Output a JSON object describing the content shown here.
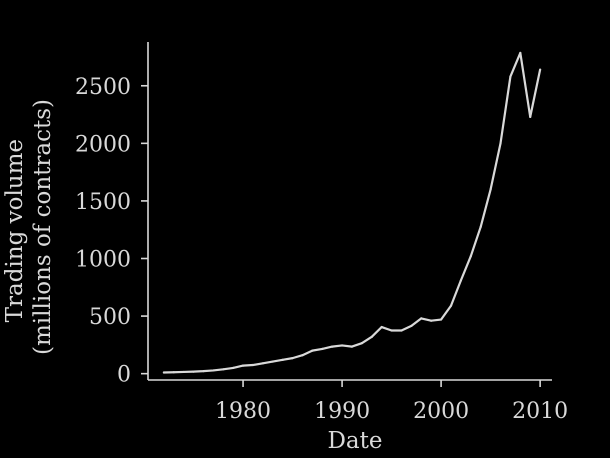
{
  "chart_data": {
    "type": "line",
    "title": "",
    "xlabel": "Date",
    "ylabel_line1": "Trading volume",
    "ylabel_line2": "(millions of contracts)",
    "xlim": [
      1970.4,
      2011.2
    ],
    "ylim": [
      -55,
      2880
    ],
    "xticks": [
      1980,
      1990,
      2000,
      2010
    ],
    "yticks": [
      0,
      500,
      1000,
      1500,
      2000,
      2500
    ],
    "xtick_labels": [
      "1980",
      "1990",
      "2000",
      "2010"
    ],
    "ytick_labels": [
      "0",
      "500",
      "1000",
      "1500",
      "2000",
      "2500"
    ],
    "grid": false,
    "colors": {
      "background": "#000000",
      "axis": "#d9d9d9",
      "line": "#d9d9d9",
      "text": "#d9d9d9"
    },
    "series": [
      {
        "x": [
          1972,
          1973,
          1974,
          1975,
          1976,
          1977,
          1978,
          1979,
          1980,
          1981,
          1982,
          1983,
          1984,
          1985,
          1986,
          1987,
          1988,
          1989,
          1990,
          1991,
          1992,
          1993,
          1994,
          1995,
          1996,
          1997,
          1998,
          1999,
          2000,
          2001,
          2002,
          2003,
          2004,
          2005,
          2006,
          2007,
          2008,
          2009,
          2010
        ],
        "values": [
          10,
          12,
          15,
          18,
          22,
          28,
          38,
          50,
          70,
          75,
          90,
          105,
          120,
          135,
          160,
          200,
          215,
          235,
          245,
          235,
          265,
          320,
          405,
          375,
          375,
          415,
          480,
          460,
          470,
          590,
          810,
          1020,
          1275,
          1600,
          2000,
          2580,
          2785,
          2230,
          2640
        ]
      }
    ]
  }
}
